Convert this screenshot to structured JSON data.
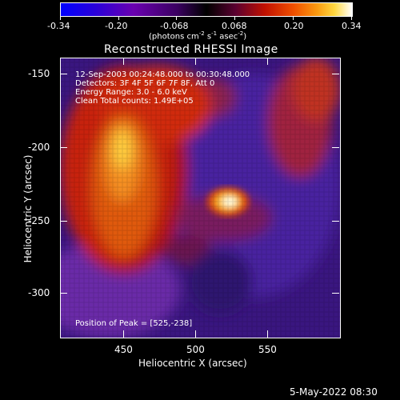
{
  "colorbar": {
    "tick_labels": [
      "-0.34",
      "-0.20",
      "-0.068",
      "0.068",
      "0.20",
      "0.34"
    ],
    "tick_values": [
      -0.34,
      -0.2,
      -0.068,
      0.068,
      0.2,
      0.34
    ],
    "units_prefix": "(photons cm",
    "units_exp1": "-2",
    "units_mid1": " s",
    "units_exp2": "-1",
    "units_mid2": " asec",
    "units_exp3": "-2",
    "units_suffix": ")"
  },
  "plot": {
    "title": "Reconstructed RHESSI Image",
    "info_lines": [
      "12-Sep-2003 00:24:48.000 to 00:30:48.000",
      "Detectors: 3F 4F 5F 6F 7F 8F, Att 0",
      "Energy Range: 3.0 - 6.0 keV",
      "Clean     Total counts: 1.49E+05"
    ],
    "peak_text": "Position of Peak = [525,-238]",
    "xlabel": "Heliocentric X (arcsec)",
    "ylabel": "Heliocentric Y (arcsec)",
    "x_ticks": [
      "450",
      "500",
      "550"
    ],
    "y_ticks": [
      "-150",
      "-200",
      "-250",
      "-300"
    ],
    "timestamp": "5-May-2022 08:30"
  }
}
